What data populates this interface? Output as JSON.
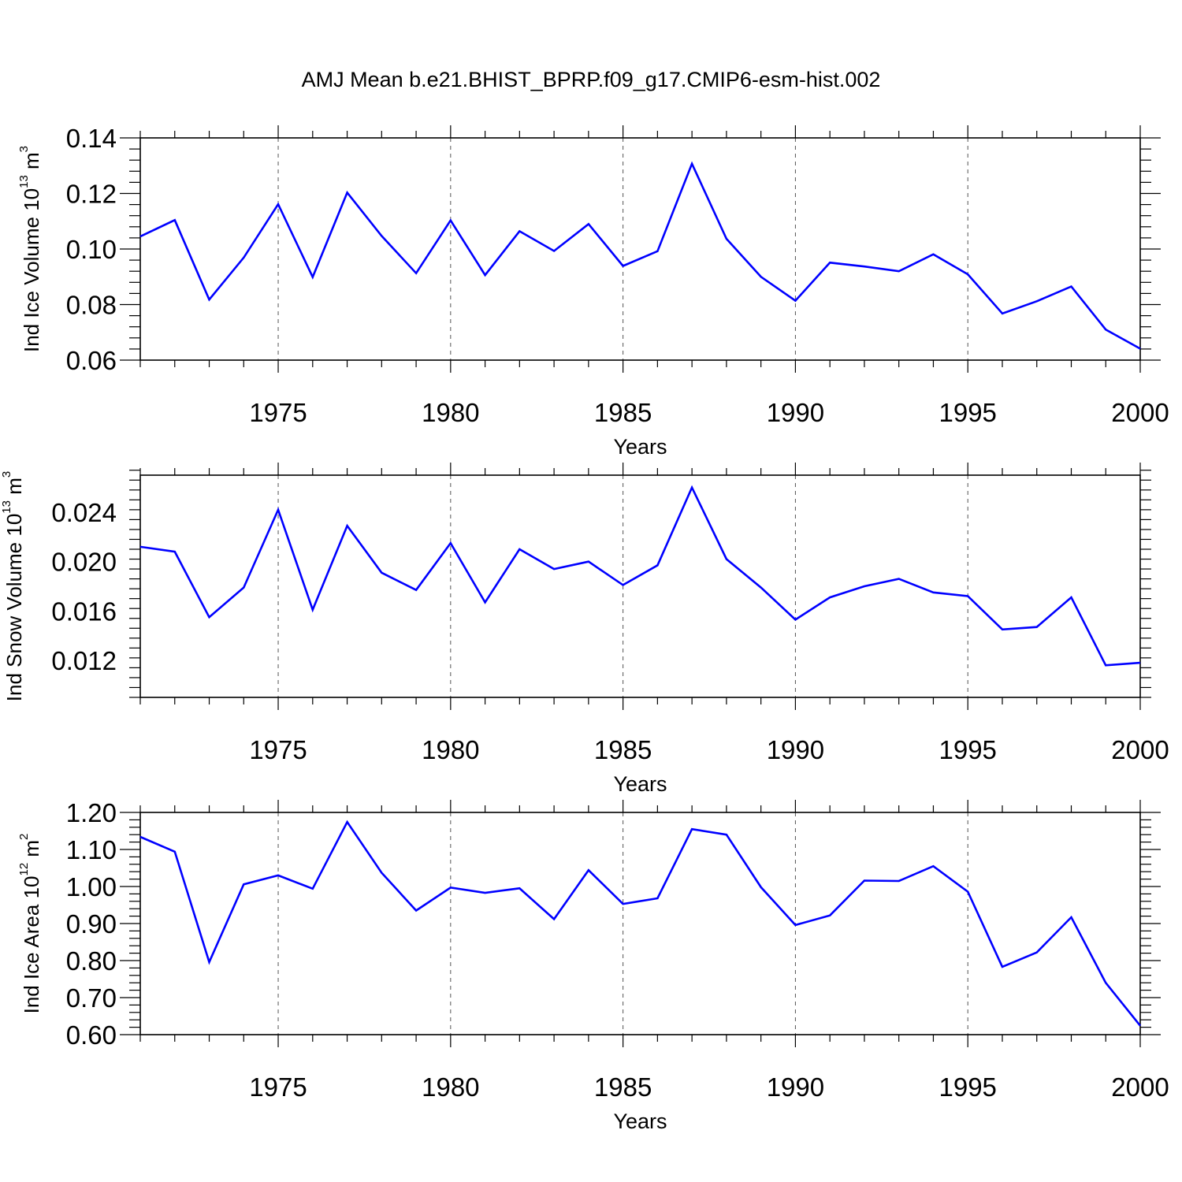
{
  "title": "AMJ Mean b.e21.BHIST_BPRP.f09_g17.CMIP6-esm-hist.002",
  "colors": {
    "line": "#0000ff",
    "axes": "#000000",
    "grid": "#555555"
  },
  "chart_data": [
    {
      "type": "line",
      "xlabel": "Years",
      "ylabel": {
        "main": "Ind Ice Volume 10",
        "exp": "13",
        "unit": " m",
        "unit_exp": "3"
      },
      "xlim": [
        1971,
        2000
      ],
      "ylim": [
        0.06,
        0.14
      ],
      "x_ticks": [
        1975,
        1980,
        1985,
        1990,
        1995,
        2000
      ],
      "y_ticks": [
        0.06,
        0.08,
        0.1,
        0.12,
        0.14
      ],
      "y_tick_labels": [
        "0.06",
        "0.08",
        "0.10",
        "0.12",
        "0.14"
      ],
      "grid": "vertical dashed at major x ticks",
      "x": [
        1971,
        1972,
        1973,
        1974,
        1975,
        1976,
        1977,
        1978,
        1979,
        1980,
        1981,
        1982,
        1983,
        1984,
        1985,
        1986,
        1987,
        1988,
        1989,
        1990,
        1991,
        1992,
        1993,
        1994,
        1995,
        1996,
        1997,
        1998,
        1999,
        2000
      ],
      "values": [
        0.1045,
        0.1104,
        0.0818,
        0.0969,
        0.1161,
        0.0899,
        0.1203,
        0.1047,
        0.0913,
        0.1103,
        0.0906,
        0.1064,
        0.0993,
        0.109,
        0.0939,
        0.0992,
        0.1307,
        0.1037,
        0.09,
        0.0814,
        0.0951,
        0.0937,
        0.092,
        0.0981,
        0.0909,
        0.0768,
        0.0812,
        0.0865,
        0.071,
        0.0641
      ]
    },
    {
      "type": "line",
      "xlabel": "Years",
      "ylabel": {
        "main": "Ind Snow Volume 10",
        "exp": "13",
        "unit": " m",
        "unit_exp": "3"
      },
      "xlim": [
        1971,
        2000
      ],
      "ylim": [
        0.009,
        0.027
      ],
      "x_ticks": [
        1975,
        1980,
        1985,
        1990,
        1995,
        2000
      ],
      "y_ticks": [
        0.012,
        0.016,
        0.02,
        0.024
      ],
      "y_tick_labels": [
        "0.012",
        "0.016",
        "0.020",
        "0.024"
      ],
      "grid": "vertical dashed at major x ticks",
      "x": [
        1971,
        1972,
        1973,
        1974,
        1975,
        1976,
        1977,
        1978,
        1979,
        1980,
        1981,
        1982,
        1983,
        1984,
        1985,
        1986,
        1987,
        1988,
        1989,
        1990,
        1991,
        1992,
        1993,
        1994,
        1995,
        1996,
        1997,
        1998,
        1999,
        2000
      ],
      "values": [
        0.0212,
        0.0208,
        0.0155,
        0.0179,
        0.0242,
        0.0161,
        0.0229,
        0.0191,
        0.0177,
        0.0215,
        0.0167,
        0.021,
        0.0194,
        0.02,
        0.0181,
        0.0197,
        0.026,
        0.0202,
        0.0179,
        0.0153,
        0.0171,
        0.018,
        0.0186,
        0.0175,
        0.0172,
        0.0145,
        0.0147,
        0.0171,
        0.0116,
        0.0118
      ]
    },
    {
      "type": "line",
      "xlabel": "Years",
      "ylabel": {
        "main": "Ind Ice Area 10",
        "exp": "12",
        "unit": " m",
        "unit_exp": "2"
      },
      "xlim": [
        1971,
        2000
      ],
      "ylim": [
        0.6,
        1.2
      ],
      "x_ticks": [
        1975,
        1980,
        1985,
        1990,
        1995,
        2000
      ],
      "y_ticks": [
        0.6,
        0.7,
        0.8,
        0.9,
        1.0,
        1.1,
        1.2
      ],
      "y_tick_labels": [
        "0.60",
        "0.70",
        "0.80",
        "0.90",
        "1.00",
        "1.10",
        "1.20"
      ],
      "grid": "vertical dashed at major x ticks",
      "x": [
        1971,
        1972,
        1973,
        1974,
        1975,
        1976,
        1977,
        1978,
        1979,
        1980,
        1981,
        1982,
        1983,
        1984,
        1985,
        1986,
        1987,
        1988,
        1989,
        1990,
        1991,
        1992,
        1993,
        1994,
        1995,
        1996,
        1997,
        1998,
        1999,
        2000
      ],
      "values": [
        1.134,
        1.094,
        0.796,
        1.006,
        1.03,
        0.994,
        1.174,
        1.037,
        0.935,
        0.997,
        0.983,
        0.995,
        0.912,
        1.044,
        0.953,
        0.968,
        1.155,
        1.14,
        0.998,
        0.896,
        0.922,
        1.016,
        1.015,
        1.055,
        0.986,
        0.783,
        0.822,
        0.917,
        0.74,
        0.624
      ]
    }
  ]
}
